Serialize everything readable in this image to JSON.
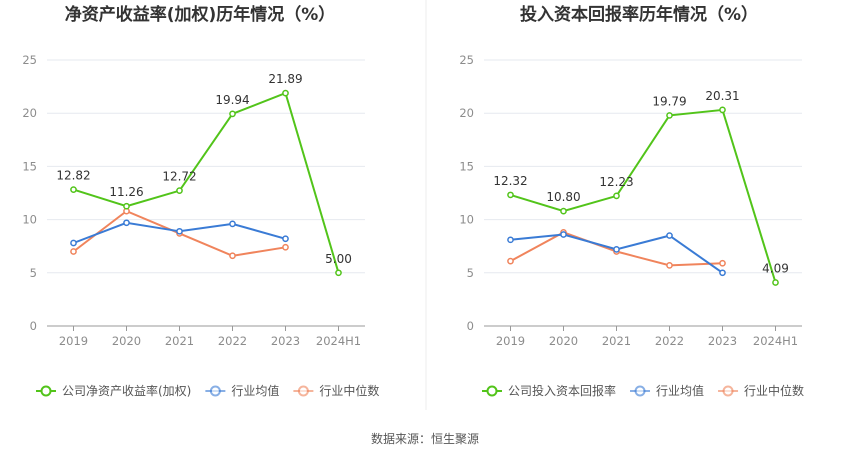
{
  "source": "数据来源：恒生聚源",
  "colors": {
    "company": "#52c41a",
    "industry_avg": "#3a7bd5",
    "industry_median": "#f0845c",
    "grid": "#e6e9ef",
    "axis": "#999999"
  },
  "chart_data": [
    {
      "type": "line",
      "title": "净资产收益率(加权)历年情况（%）",
      "categories": [
        "2019",
        "2020",
        "2021",
        "2022",
        "2023",
        "2024H1"
      ],
      "ylim": [
        0,
        25
      ],
      "yticks": [
        0,
        5,
        10,
        15,
        20,
        25
      ],
      "series": [
        {
          "name": "公司净资产收益率(加权)",
          "key": "company",
          "values": [
            12.82,
            11.26,
            12.72,
            19.94,
            21.89,
            5.0
          ],
          "labels": [
            "12.82",
            "11.26",
            "12.72",
            "19.94",
            "21.89",
            "5.00"
          ]
        },
        {
          "name": "行业均值",
          "key": "industry_avg",
          "values": [
            7.8,
            9.7,
            8.9,
            9.6,
            8.2,
            null
          ]
        },
        {
          "name": "行业中位数",
          "key": "industry_median",
          "values": [
            7.0,
            10.8,
            8.7,
            6.6,
            7.4,
            null
          ]
        }
      ]
    },
    {
      "type": "line",
      "title": "投入资本回报率历年情况（%）",
      "categories": [
        "2019",
        "2020",
        "2021",
        "2022",
        "2023",
        "2024H1"
      ],
      "ylim": [
        0,
        25
      ],
      "yticks": [
        0,
        5,
        10,
        15,
        20,
        25
      ],
      "series": [
        {
          "name": "公司投入资本回报率",
          "key": "company",
          "values": [
            12.32,
            10.8,
            12.23,
            19.79,
            20.31,
            4.09
          ],
          "labels": [
            "12.32",
            "10.80",
            "12.23",
            "19.79",
            "20.31",
            "4.09"
          ]
        },
        {
          "name": "行业均值",
          "key": "industry_avg",
          "values": [
            8.1,
            8.6,
            7.2,
            8.5,
            5.0,
            null
          ]
        },
        {
          "name": "行业中位数",
          "key": "industry_median",
          "values": [
            6.1,
            8.8,
            7.0,
            5.7,
            5.9,
            null
          ]
        }
      ]
    }
  ]
}
